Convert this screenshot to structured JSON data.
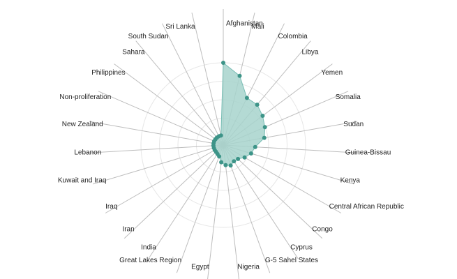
{
  "chart_data": {
    "type": "radar",
    "categories": [
      "Afghanistan",
      "Mali",
      "Colombia",
      "Libya",
      "Yemen",
      "Somalia",
      "Sudan",
      "Guinea-Bissau",
      "Kenya",
      "Central African Republic",
      "Congo",
      "Cyprus",
      "G-5 Sahel States",
      "Nigeria",
      "Egypt",
      "Great Lakes Region",
      "India",
      "Iran",
      "Iraq",
      "Kuwait and Iraq",
      "Lebanon",
      "New Zealand",
      "Non-proliferation",
      "Philippines",
      "Sahara",
      "South Sudan",
      "Sri Lanka"
    ],
    "values": [
      100,
      85,
      60,
      60,
      55,
      50,
      45,
      32,
      28,
      22,
      16,
      15,
      18,
      16,
      12,
      5,
      3,
      2,
      2,
      2,
      2,
      2,
      2,
      2,
      2,
      2,
      2
    ],
    "rmax": 100,
    "grid": true,
    "colors": {
      "fill": "#a7d3cd",
      "stroke": "#78bdb4",
      "point": "#3d9488"
    }
  }
}
